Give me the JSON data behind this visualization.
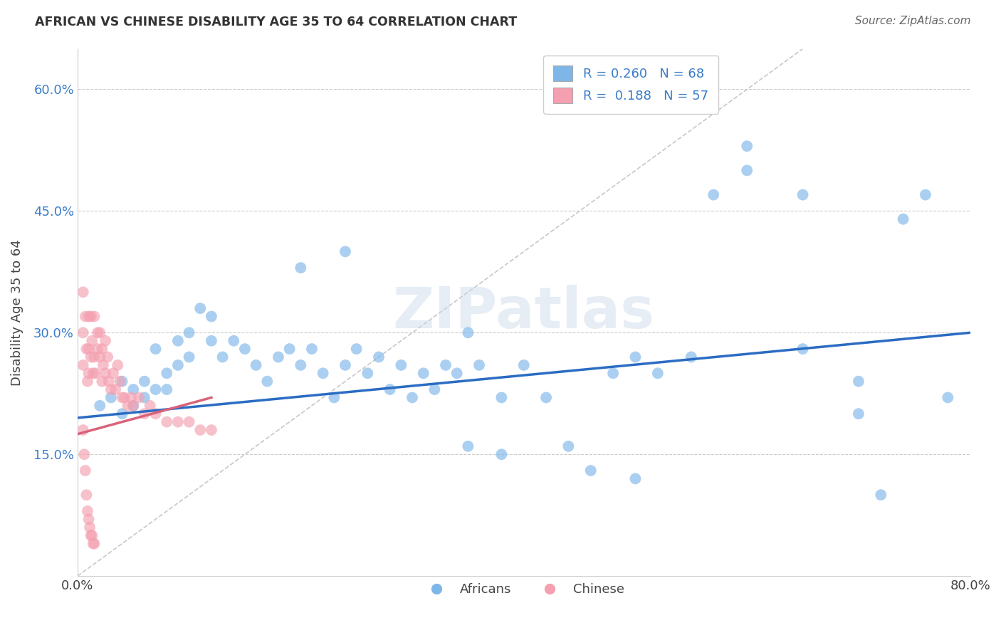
{
  "title": "AFRICAN VS CHINESE DISABILITY AGE 35 TO 64 CORRELATION CHART",
  "source_text": "Source: ZipAtlas.com",
  "ylabel": "Disability Age 35 to 64",
  "xlim": [
    0.0,
    0.8
  ],
  "ylim": [
    0.0,
    0.65
  ],
  "ytick_positions": [
    0.15,
    0.3,
    0.45,
    0.6
  ],
  "grid_color": "#cccccc",
  "legend_R_african": "0.260",
  "legend_N_african": "68",
  "legend_R_chinese": "0.188",
  "legend_N_chinese": "57",
  "african_color": "#7eb6e8",
  "chinese_color": "#f4a0b0",
  "african_line_color": "#2b6cc4",
  "chinese_line_color": "#d9627a",
  "diag_line_color": "#c8c8c8",
  "african_line_y0": 0.195,
  "african_line_y1": 0.3,
  "chinese_line_y0": 0.175,
  "chinese_line_y1": 0.22,
  "african_x": [
    0.02,
    0.03,
    0.04,
    0.04,
    0.05,
    0.05,
    0.06,
    0.06,
    0.07,
    0.07,
    0.08,
    0.08,
    0.09,
    0.09,
    0.1,
    0.1,
    0.11,
    0.12,
    0.12,
    0.13,
    0.14,
    0.15,
    0.16,
    0.17,
    0.18,
    0.19,
    0.2,
    0.21,
    0.22,
    0.23,
    0.24,
    0.25,
    0.26,
    0.27,
    0.28,
    0.29,
    0.3,
    0.31,
    0.32,
    0.33,
    0.34,
    0.35,
    0.36,
    0.38,
    0.4,
    0.42,
    0.44,
    0.46,
    0.48,
    0.5,
    0.52,
    0.55,
    0.57,
    0.6,
    0.65,
    0.7,
    0.72,
    0.74,
    0.76,
    0.78,
    0.24,
    0.38,
    0.5,
    0.6,
    0.65,
    0.7,
    0.2,
    0.35
  ],
  "african_y": [
    0.21,
    0.22,
    0.2,
    0.24,
    0.21,
    0.23,
    0.22,
    0.24,
    0.28,
    0.23,
    0.25,
    0.23,
    0.29,
    0.26,
    0.3,
    0.27,
    0.33,
    0.29,
    0.32,
    0.27,
    0.29,
    0.28,
    0.26,
    0.24,
    0.27,
    0.28,
    0.26,
    0.28,
    0.25,
    0.22,
    0.26,
    0.28,
    0.25,
    0.27,
    0.23,
    0.26,
    0.22,
    0.25,
    0.23,
    0.26,
    0.25,
    0.16,
    0.26,
    0.22,
    0.26,
    0.22,
    0.16,
    0.13,
    0.25,
    0.12,
    0.25,
    0.27,
    0.47,
    0.5,
    0.28,
    0.24,
    0.1,
    0.44,
    0.47,
    0.22,
    0.4,
    0.15,
    0.27,
    0.53,
    0.47,
    0.2,
    0.38,
    0.3
  ],
  "chinese_x": [
    0.005,
    0.005,
    0.005,
    0.007,
    0.008,
    0.009,
    0.01,
    0.01,
    0.01,
    0.012,
    0.012,
    0.013,
    0.014,
    0.015,
    0.015,
    0.016,
    0.018,
    0.018,
    0.02,
    0.02,
    0.022,
    0.022,
    0.023,
    0.025,
    0.025,
    0.027,
    0.028,
    0.03,
    0.032,
    0.034,
    0.036,
    0.038,
    0.04,
    0.042,
    0.045,
    0.048,
    0.05,
    0.055,
    0.06,
    0.065,
    0.07,
    0.08,
    0.09,
    0.1,
    0.11,
    0.12,
    0.005,
    0.006,
    0.007,
    0.008,
    0.009,
    0.01,
    0.011,
    0.012,
    0.013,
    0.014,
    0.015
  ],
  "chinese_y": [
    0.35,
    0.3,
    0.26,
    0.32,
    0.28,
    0.24,
    0.32,
    0.28,
    0.25,
    0.32,
    0.27,
    0.29,
    0.25,
    0.32,
    0.27,
    0.25,
    0.3,
    0.28,
    0.3,
    0.27,
    0.28,
    0.24,
    0.26,
    0.29,
    0.25,
    0.27,
    0.24,
    0.23,
    0.25,
    0.23,
    0.26,
    0.24,
    0.22,
    0.22,
    0.21,
    0.22,
    0.21,
    0.22,
    0.2,
    0.21,
    0.2,
    0.19,
    0.19,
    0.19,
    0.18,
    0.18,
    0.18,
    0.15,
    0.13,
    0.1,
    0.08,
    0.07,
    0.06,
    0.05,
    0.05,
    0.04,
    0.04
  ]
}
